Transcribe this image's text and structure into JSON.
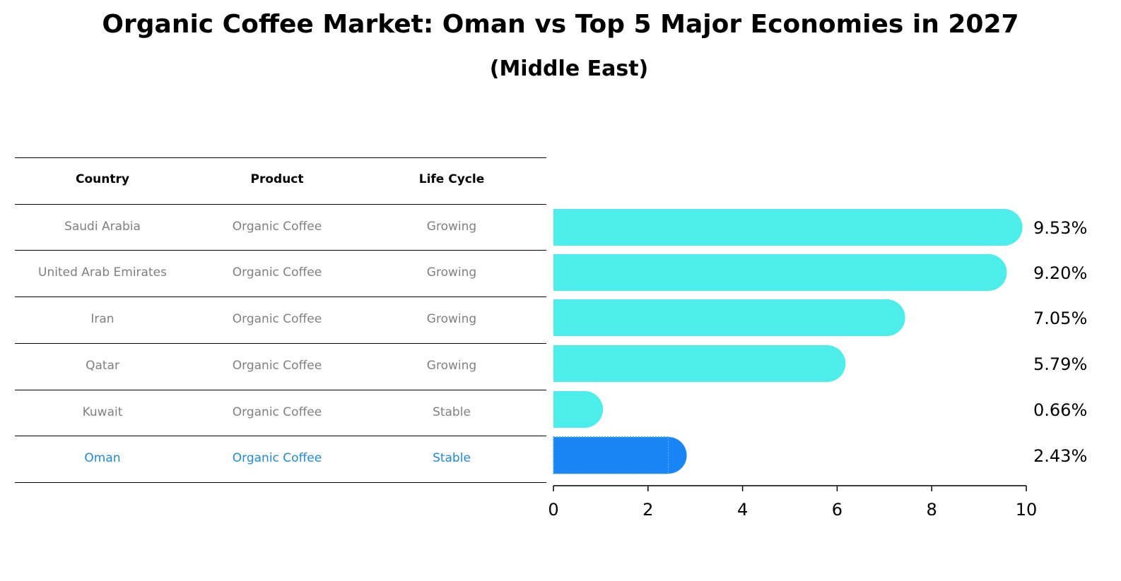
{
  "header": {
    "title": "Organic Coffee Market: Oman vs Top 5 Major Economies in 2027",
    "subtitle": "(Middle East)"
  },
  "table": {
    "columns": [
      "Country",
      "Product",
      "Life Cycle"
    ],
    "rows": [
      {
        "country": "Saudi Arabia",
        "product": "Organic Coffee",
        "life_cycle": "Growing"
      },
      {
        "country": "United Arab Emirates",
        "product": "Organic Coffee",
        "life_cycle": "Growing"
      },
      {
        "country": "Iran",
        "product": "Organic Coffee",
        "life_cycle": "Growing"
      },
      {
        "country": "Qatar",
        "product": "Organic Coffee",
        "life_cycle": "Growing"
      },
      {
        "country": "Kuwait",
        "product": "Organic Coffee",
        "life_cycle": "Stable"
      },
      {
        "country": "Oman",
        "product": "Organic Coffee",
        "life_cycle": "Stable"
      }
    ],
    "highlight_country": "Oman",
    "row_text_color": "#808080",
    "highlight_text_color": "#1f8bd6"
  },
  "chart_data": {
    "type": "bar",
    "orientation": "horizontal",
    "categories": [
      "Saudi Arabia",
      "United Arab Emirates",
      "Iran",
      "Qatar",
      "Kuwait",
      "Oman"
    ],
    "values": [
      9.53,
      9.2,
      7.05,
      5.79,
      0.66,
      2.43
    ],
    "data_labels": [
      "9.53%",
      "9.20%",
      "7.05%",
      "5.79%",
      "0.66%",
      "2.43%"
    ],
    "xlim": [
      0,
      10
    ],
    "xticks": [
      0,
      2,
      4,
      6,
      8,
      10
    ],
    "grid": false,
    "bar_color": "#4deeea",
    "highlight_color": "#1a85f5",
    "highlight_index": 5
  }
}
